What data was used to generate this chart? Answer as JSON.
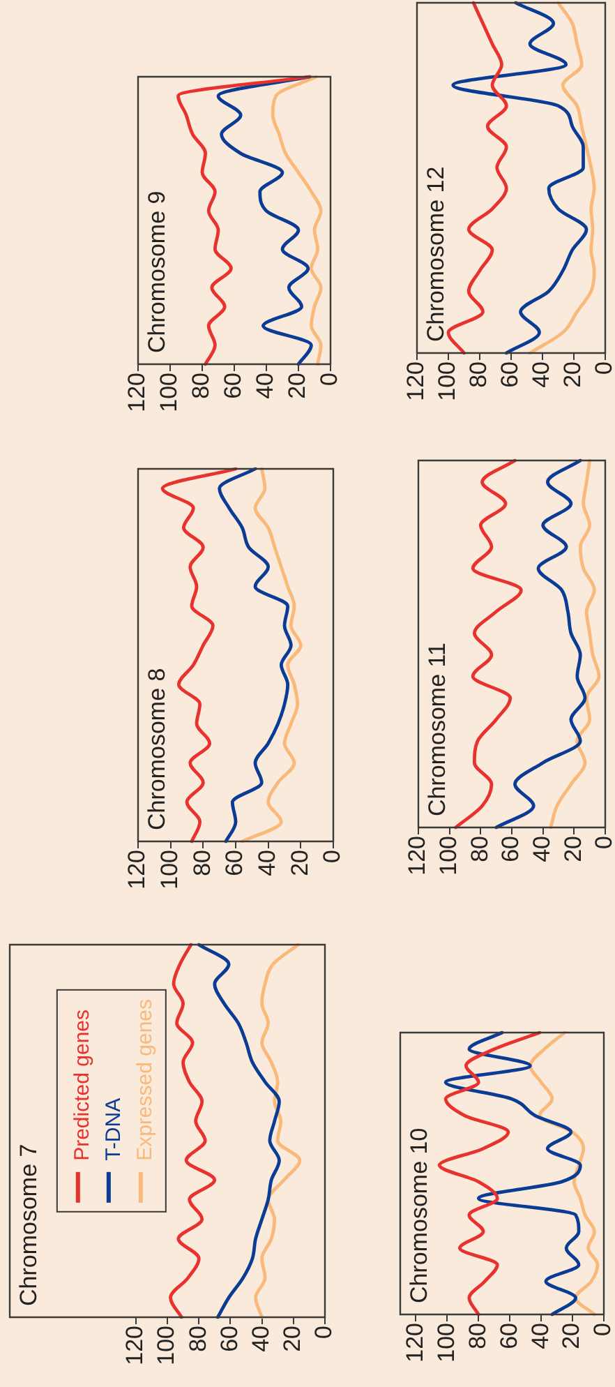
{
  "chart_data": [
    {
      "type": "line",
      "orientation": "horizontal",
      "title": "Chromosome 7",
      "categories": [
        null,
        null,
        null,
        null,
        null,
        null,
        null,
        null,
        null,
        null,
        null,
        null,
        null,
        null,
        null,
        null,
        null,
        null,
        null,
        null
      ],
      "xlim": [
        200,
        0
      ],
      "xticks": [
        0,
        20,
        40,
        60,
        80,
        100,
        120
      ],
      "tick_labels": "x",
      "legend": "top left",
      "marker": "none",
      "series": [
        {
          "name": "Predicted genes",
          "color": "#e8322e",
          "values": [
            85,
            92,
            96,
            90,
            94,
            84,
            90,
            86,
            78,
            82,
            76,
            88,
            70,
            86,
            78,
            93,
            80,
            87,
            98,
            91
          ]
        },
        {
          "name": "T-DNA",
          "color": "#0a3c96",
          "values": [
            80,
            61,
            70,
            64,
            55,
            50,
            46,
            38,
            29,
            32,
            35,
            29,
            34,
            36,
            40,
            44,
            46,
            52,
            61,
            68
          ]
        },
        {
          "name": "Expressed genes",
          "color": "#f9b97a",
          "values": [
            17,
            33,
            38,
            40,
            36,
            40,
            34,
            30,
            32,
            28,
            30,
            16,
            26,
            36,
            32,
            34,
            40,
            38,
            44,
            40
          ]
        }
      ]
    },
    {
      "type": "line",
      "orientation": "horizontal",
      "title": "Chromosome 8",
      "categories": [
        null,
        null,
        null,
        null,
        null,
        null,
        null,
        null,
        null,
        null,
        null,
        null,
        null,
        null,
        null,
        null,
        null,
        null,
        null,
        null
      ],
      "xlim": [
        120,
        0
      ],
      "xticks": [
        0,
        20,
        40,
        60,
        80,
        100,
        120
      ],
      "tick_labels": "x",
      "marker": "none",
      "series": [
        {
          "color": "#e8322e",
          "values": [
            60,
            105,
            86,
            92,
            80,
            88,
            84,
            87,
            74,
            80,
            86,
            95,
            82,
            84,
            76,
            88,
            80,
            90,
            82,
            87
          ]
        },
        {
          "color": "#0a3c96",
          "values": [
            48,
            70,
            64,
            56,
            52,
            40,
            48,
            28,
            30,
            26,
            32,
            28,
            30,
            34,
            40,
            48,
            44,
            62,
            60,
            66
          ]
        },
        {
          "color": "#f9b97a",
          "values": [
            44,
            42,
            48,
            40,
            36,
            32,
            28,
            24,
            26,
            20,
            28,
            24,
            22,
            26,
            30,
            24,
            34,
            40,
            32,
            56
          ]
        }
      ]
    },
    {
      "type": "line",
      "orientation": "horizontal",
      "title": "Chromosome 9",
      "categories": [
        null,
        null,
        null,
        null,
        null,
        null,
        null,
        null,
        null,
        null,
        null,
        null,
        null,
        null,
        null,
        null
      ],
      "xlim": [
        120,
        0
      ],
      "xticks": [
        0,
        20,
        40,
        60,
        80,
        100,
        120
      ],
      "tick_labels": "x",
      "marker": "none",
      "series": [
        {
          "color": "#e8322e",
          "values": [
            13,
            95,
            90,
            86,
            78,
            80,
            72,
            76,
            70,
            72,
            62,
            74,
            66,
            76,
            72,
            78
          ]
        },
        {
          "color": "#0a3c96",
          "values": [
            13,
            70,
            56,
            68,
            56,
            30,
            44,
            40,
            20,
            30,
            14,
            26,
            18,
            42,
            12,
            20
          ]
        },
        {
          "color": "#f9b97a",
          "values": [
            9,
            34,
            36,
            32,
            28,
            20,
            12,
            6,
            10,
            8,
            12,
            6,
            10,
            12,
            6,
            8
          ]
        }
      ]
    },
    {
      "type": "line",
      "orientation": "horizontal",
      "title": "Chromosome 10",
      "categories": [
        null,
        null,
        null,
        null,
        null,
        null,
        null,
        null,
        null,
        null,
        null,
        null,
        null,
        null,
        null,
        null,
        null,
        null
      ],
      "xlim": [
        130,
        0
      ],
      "xticks": [
        0,
        20,
        40,
        60,
        80,
        100,
        120
      ],
      "tick_labels": "x",
      "marker": "none",
      "series": [
        {
          "color": "#e8322e",
          "values": [
            41,
            70,
            88,
            80,
            101,
            89,
            61,
            77,
            105,
            80,
            68,
            86,
            77,
            92,
            68,
            76,
            86,
            80
          ]
        },
        {
          "color": "#0a3c96",
          "values": [
            65,
            86,
            47,
            101,
            59,
            44,
            21,
            36,
            15,
            27,
            80,
            18,
            16,
            24,
            16,
            37,
            18,
            33
          ]
        },
        {
          "color": "#f9b97a",
          "values": [
            25,
            38,
            47,
            40,
            33,
            41,
            20,
            13,
            16,
            19,
            15,
            12,
            6,
            10,
            4,
            8,
            18,
            6
          ]
        }
      ]
    },
    {
      "type": "line",
      "orientation": "horizontal",
      "title": "Chromosome 11",
      "categories": [
        null,
        null,
        null,
        null,
        null,
        null,
        null,
        null,
        null,
        null,
        null,
        null,
        null,
        null,
        null,
        null,
        null,
        null
      ],
      "xlim": [
        120,
        0
      ],
      "xticks": [
        0,
        20,
        40,
        60,
        80,
        100,
        120
      ],
      "tick_labels": "x",
      "marker": "none",
      "series": [
        {
          "color": "#e8322e",
          "values": [
            58,
            79,
            64,
            80,
            73,
            85,
            54,
            70,
            84,
            73,
            85,
            61,
            70,
            82,
            84,
            73,
            79,
            96
          ]
        },
        {
          "color": "#0a3c96",
          "values": [
            16,
            37,
            22,
            40,
            25,
            43,
            28,
            24,
            22,
            16,
            18,
            13,
            22,
            16,
            40,
            58,
            46,
            70
          ]
        },
        {
          "color": "#f9b97a",
          "values": [
            10,
            12,
            14,
            10,
            16,
            14,
            7,
            12,
            10,
            8,
            4,
            12,
            10,
            18,
            13,
            22,
            31,
            35
          ]
        }
      ]
    },
    {
      "type": "line",
      "orientation": "horizontal",
      "title": "Chromosome 12",
      "categories": [
        null,
        null,
        null,
        null,
        null,
        null,
        null,
        null,
        null,
        null,
        null,
        null,
        null,
        null,
        null,
        null,
        null,
        null
      ],
      "xlim": [
        120,
        0
      ],
      "xticks": [
        0,
        20,
        40,
        60,
        80,
        100,
        120
      ],
      "tick_labels": "x",
      "marker": "none",
      "series": [
        {
          "color": "#e8322e",
          "values": [
            84,
            78,
            72,
            66,
            72,
            63,
            75,
            63,
            69,
            63,
            72,
            87,
            72,
            80,
            87,
            78,
            100,
            90
          ]
        },
        {
          "color": "#0a3c96",
          "values": [
            57,
            33,
            48,
            25,
            97,
            30,
            21,
            14,
            14,
            36,
            30,
            12,
            21,
            27,
            36,
            54,
            42,
            63
          ]
        },
        {
          "color": "#f9b97a",
          "values": [
            30,
            21,
            18,
            15,
            27,
            18,
            15,
            12,
            9,
            7,
            9,
            8,
            9,
            7,
            9,
            18,
            27,
            48
          ]
        }
      ]
    }
  ]
}
